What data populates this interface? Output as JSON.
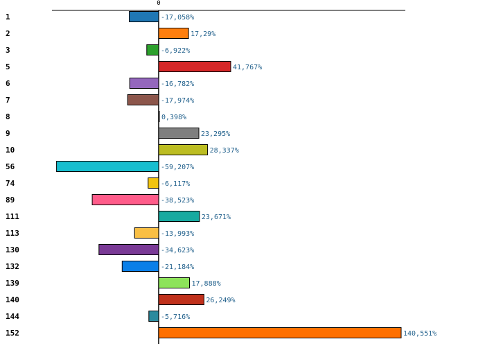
{
  "chart_data": {
    "type": "bar",
    "orientation": "horizontal",
    "title": "",
    "xlabel": "",
    "ylabel": "",
    "zero_tick_label": "0",
    "xlim": [
      -67,
      163
    ],
    "grid": false,
    "categories": [
      "1",
      "2",
      "3",
      "5",
      "6",
      "7",
      "8",
      "9",
      "10",
      "56",
      "74",
      "89",
      "111",
      "113",
      "130",
      "132",
      "139",
      "140",
      "144",
      "152"
    ],
    "values": [
      -17.058,
      17.29,
      -6.922,
      41.767,
      -16.782,
      -17.974,
      0.398,
      23.295,
      28.337,
      -59.207,
      -6.117,
      -38.523,
      23.671,
      -13.993,
      -34.623,
      -21.184,
      17.888,
      26.249,
      -5.716,
      140.551
    ],
    "data_labels": [
      "-17,058%",
      "17,29%",
      "-6,922%",
      "41,767%",
      "-16,782%",
      "-17,974%",
      "0,398%",
      "23,295%",
      "28,337%",
      "-59,207%",
      "-6,117%",
      "-38,523%",
      "23,671%",
      "-13,993%",
      "-34,623%",
      "-21,184%",
      "17,888%",
      "26,249%",
      "-5,716%",
      "140,551%"
    ],
    "colors": [
      "#1f77b4",
      "#ff7f0e",
      "#2ca02c",
      "#d62728",
      "#9467bd",
      "#8c564b",
      "#e377c2",
      "#7f7f7f",
      "#bcbd22",
      "#17becf",
      "#f2c40f",
      "#ff5c8a",
      "#17aaa0",
      "#f9bf44",
      "#7a3a96",
      "#0a7fe8",
      "#8de35a",
      "#c0311c",
      "#2b8a9e",
      "#ff7000"
    ]
  }
}
